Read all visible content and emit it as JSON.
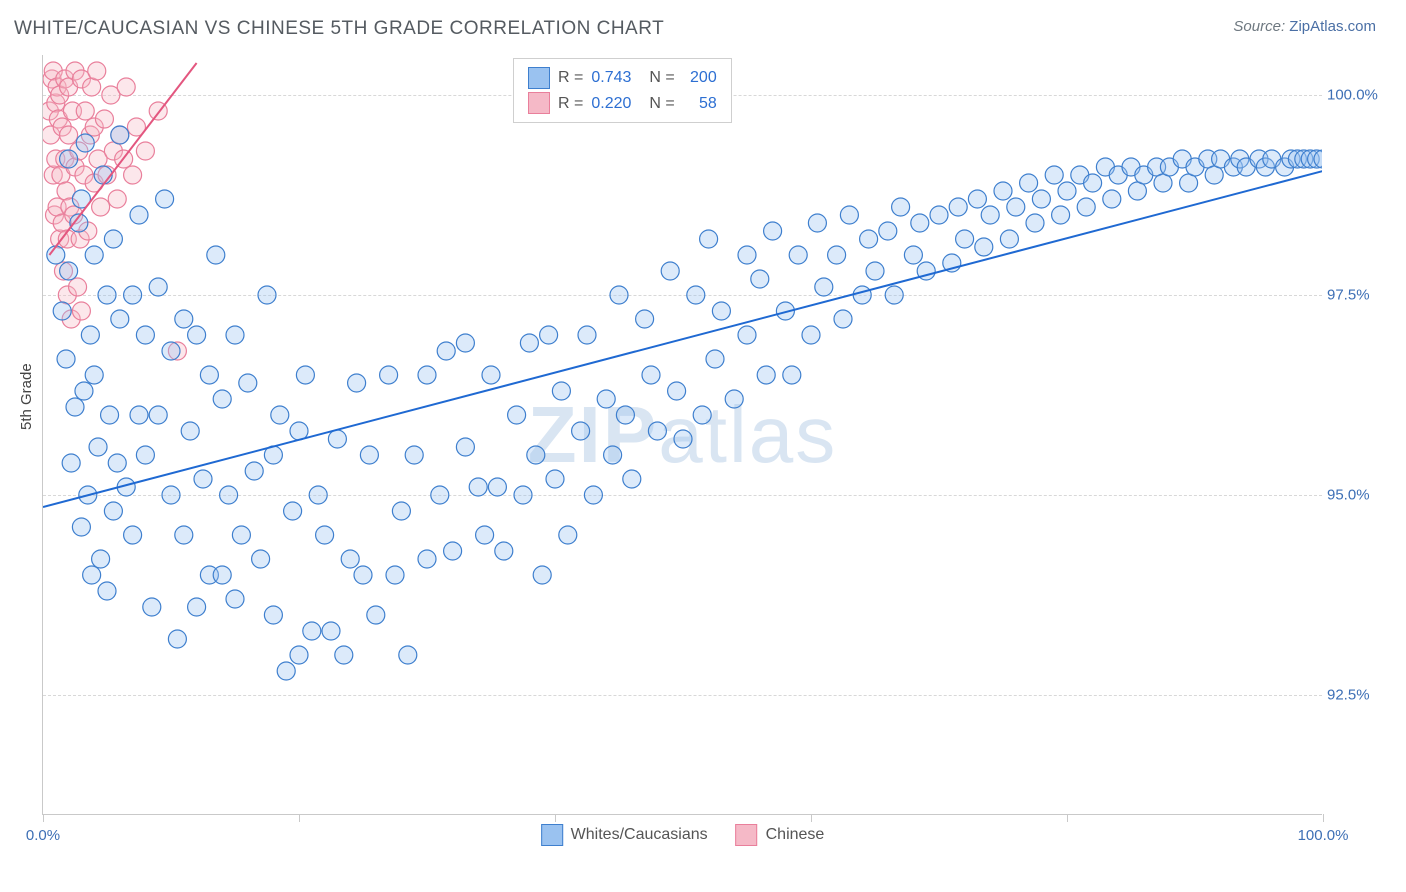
{
  "title": "WHITE/CAUCASIAN VS CHINESE 5TH GRADE CORRELATION CHART",
  "source_prefix": "Source: ",
  "source_name": "ZipAtlas.com",
  "y_axis_title": "5th Grade",
  "watermark_bold": "ZIP",
  "watermark_rest": "atlas",
  "chart": {
    "type": "scatter",
    "background_color": "#ffffff",
    "grid_color": "#d8d8d8",
    "axis_color": "#c9c9c9",
    "tick_label_color": "#3d6fb5",
    "tick_fontsize": 15,
    "xlim": [
      0,
      100
    ],
    "ylim": [
      91.0,
      100.5
    ],
    "x_ticks": [
      0,
      20,
      40,
      60,
      80,
      100
    ],
    "x_tick_labels": {
      "0": "0.0%",
      "100": "100.0%"
    },
    "y_ticks": [
      92.5,
      95.0,
      97.5,
      100.0
    ],
    "y_tick_labels": [
      "92.5%",
      "95.0%",
      "97.5%",
      "100.0%"
    ],
    "marker_radius": 9,
    "marker_stroke_width": 1.2,
    "marker_fill_opacity": 0.35,
    "line_width": 2,
    "series": [
      {
        "name": "Whites/Caucasians",
        "fill": "#9ac2f0",
        "stroke": "#3e7fce",
        "line_color": "#1f69d2",
        "R": "0.743",
        "N": "200",
        "trend": {
          "x1": 0,
          "y1": 94.85,
          "x2": 100,
          "y2": 99.05
        },
        "points": [
          [
            1,
            98.0
          ],
          [
            1.5,
            97.3
          ],
          [
            1.8,
            96.7
          ],
          [
            2,
            99.2
          ],
          [
            2,
            97.8
          ],
          [
            2.2,
            95.4
          ],
          [
            2.5,
            96.1
          ],
          [
            2.8,
            98.4
          ],
          [
            3,
            94.6
          ],
          [
            3,
            98.7
          ],
          [
            3.2,
            96.3
          ],
          [
            3.3,
            99.4
          ],
          [
            3.5,
            95.0
          ],
          [
            3.7,
            97.0
          ],
          [
            3.8,
            94.0
          ],
          [
            4,
            98.0
          ],
          [
            4,
            96.5
          ],
          [
            4.3,
            95.6
          ],
          [
            4.5,
            94.2
          ],
          [
            4.7,
            99.0
          ],
          [
            5,
            97.5
          ],
          [
            5,
            93.8
          ],
          [
            5.2,
            96.0
          ],
          [
            5.5,
            94.8
          ],
          [
            5.5,
            98.2
          ],
          [
            5.8,
            95.4
          ],
          [
            6,
            97.2
          ],
          [
            6,
            99.5
          ],
          [
            6.5,
            95.1
          ],
          [
            7,
            97.5
          ],
          [
            7,
            94.5
          ],
          [
            7.5,
            98.5
          ],
          [
            7.5,
            96.0
          ],
          [
            8,
            97.0
          ],
          [
            8,
            95.5
          ],
          [
            8.5,
            93.6
          ],
          [
            9,
            96.0
          ],
          [
            9,
            97.6
          ],
          [
            9.5,
            98.7
          ],
          [
            10,
            96.8
          ],
          [
            10,
            95.0
          ],
          [
            10.5,
            93.2
          ],
          [
            11,
            97.2
          ],
          [
            11,
            94.5
          ],
          [
            11.5,
            95.8
          ],
          [
            12,
            93.6
          ],
          [
            12,
            97.0
          ],
          [
            12.5,
            95.2
          ],
          [
            13,
            96.5
          ],
          [
            13,
            94.0
          ],
          [
            13.5,
            98.0
          ],
          [
            14,
            94.0
          ],
          [
            14,
            96.2
          ],
          [
            14.5,
            95.0
          ],
          [
            15,
            93.7
          ],
          [
            15,
            97.0
          ],
          [
            15.5,
            94.5
          ],
          [
            16,
            96.4
          ],
          [
            16.5,
            95.3
          ],
          [
            17,
            94.2
          ],
          [
            17.5,
            97.5
          ],
          [
            18,
            95.5
          ],
          [
            18,
            93.5
          ],
          [
            18.5,
            96.0
          ],
          [
            19,
            92.8
          ],
          [
            19.5,
            94.8
          ],
          [
            20,
            95.8
          ],
          [
            20,
            93.0
          ],
          [
            20.5,
            96.5
          ],
          [
            21,
            93.3
          ],
          [
            21.5,
            95.0
          ],
          [
            22,
            94.5
          ],
          [
            22.5,
            93.3
          ],
          [
            23,
            95.7
          ],
          [
            23.5,
            93.0
          ],
          [
            24,
            94.2
          ],
          [
            24.5,
            96.4
          ],
          [
            25,
            94.0
          ],
          [
            25.5,
            95.5
          ],
          [
            26,
            93.5
          ],
          [
            27,
            96.5
          ],
          [
            27.5,
            94.0
          ],
          [
            28,
            94.8
          ],
          [
            28.5,
            93.0
          ],
          [
            29,
            95.5
          ],
          [
            30,
            96.5
          ],
          [
            30,
            94.2
          ],
          [
            31,
            95.0
          ],
          [
            31.5,
            96.8
          ],
          [
            32,
            94.3
          ],
          [
            33,
            95.6
          ],
          [
            33,
            96.9
          ],
          [
            34,
            95.1
          ],
          [
            34.5,
            94.5
          ],
          [
            35,
            96.5
          ],
          [
            35.5,
            95.1
          ],
          [
            36,
            94.3
          ],
          [
            37,
            96.0
          ],
          [
            37.5,
            95.0
          ],
          [
            38,
            96.9
          ],
          [
            38.5,
            95.5
          ],
          [
            39,
            94.0
          ],
          [
            39.5,
            97.0
          ],
          [
            40,
            95.2
          ],
          [
            40.5,
            96.3
          ],
          [
            41,
            94.5
          ],
          [
            42,
            95.8
          ],
          [
            42.5,
            97.0
          ],
          [
            43,
            95.0
          ],
          [
            44,
            96.2
          ],
          [
            44.5,
            95.5
          ],
          [
            45,
            97.5
          ],
          [
            45.5,
            96.0
          ],
          [
            46,
            95.2
          ],
          [
            47,
            97.2
          ],
          [
            47.5,
            96.5
          ],
          [
            48,
            95.8
          ],
          [
            49,
            97.8
          ],
          [
            49.5,
            96.3
          ],
          [
            50,
            95.7
          ],
          [
            51,
            97.5
          ],
          [
            51.5,
            96.0
          ],
          [
            52,
            98.2
          ],
          [
            52.5,
            96.7
          ],
          [
            53,
            97.3
          ],
          [
            54,
            96.2
          ],
          [
            55,
            98.0
          ],
          [
            55,
            97.0
          ],
          [
            56,
            97.7
          ],
          [
            56.5,
            96.5
          ],
          [
            57,
            98.3
          ],
          [
            58,
            97.3
          ],
          [
            58.5,
            96.5
          ],
          [
            59,
            98.0
          ],
          [
            60,
            97.0
          ],
          [
            60.5,
            98.4
          ],
          [
            61,
            97.6
          ],
          [
            62,
            98.0
          ],
          [
            62.5,
            97.2
          ],
          [
            63,
            98.5
          ],
          [
            64,
            97.5
          ],
          [
            64.5,
            98.2
          ],
          [
            65,
            97.8
          ],
          [
            66,
            98.3
          ],
          [
            66.5,
            97.5
          ],
          [
            67,
            98.6
          ],
          [
            68,
            98.0
          ],
          [
            68.5,
            98.4
          ],
          [
            69,
            97.8
          ],
          [
            70,
            98.5
          ],
          [
            71,
            97.9
          ],
          [
            71.5,
            98.6
          ],
          [
            72,
            98.2
          ],
          [
            73,
            98.7
          ],
          [
            73.5,
            98.1
          ],
          [
            74,
            98.5
          ],
          [
            75,
            98.8
          ],
          [
            75.5,
            98.2
          ],
          [
            76,
            98.6
          ],
          [
            77,
            98.9
          ],
          [
            77.5,
            98.4
          ],
          [
            78,
            98.7
          ],
          [
            79,
            99.0
          ],
          [
            79.5,
            98.5
          ],
          [
            80,
            98.8
          ],
          [
            81,
            99.0
          ],
          [
            81.5,
            98.6
          ],
          [
            82,
            98.9
          ],
          [
            83,
            99.1
          ],
          [
            83.5,
            98.7
          ],
          [
            84,
            99.0
          ],
          [
            85,
            99.1
          ],
          [
            85.5,
            98.8
          ],
          [
            86,
            99.0
          ],
          [
            87,
            99.1
          ],
          [
            87.5,
            98.9
          ],
          [
            88,
            99.1
          ],
          [
            89,
            99.2
          ],
          [
            89.5,
            98.9
          ],
          [
            90,
            99.1
          ],
          [
            91,
            99.2
          ],
          [
            91.5,
            99.0
          ],
          [
            92,
            99.2
          ],
          [
            93,
            99.1
          ],
          [
            93.5,
            99.2
          ],
          [
            94,
            99.1
          ],
          [
            95,
            99.2
          ],
          [
            95.5,
            99.1
          ],
          [
            96,
            99.2
          ],
          [
            97,
            99.1
          ],
          [
            97.5,
            99.2
          ],
          [
            98,
            99.2
          ],
          [
            98.5,
            99.2
          ],
          [
            99,
            99.2
          ],
          [
            99.5,
            99.2
          ],
          [
            100,
            99.2
          ]
        ]
      },
      {
        "name": "Chinese",
        "fill": "#f5b9c7",
        "stroke": "#e97f9b",
        "line_color": "#e3567f",
        "R": "0.220",
        "N": "58",
        "trend": {
          "x1": 0.5,
          "y1": 98.0,
          "x2": 12,
          "y2": 100.4
        },
        "points": [
          [
            0.5,
            99.8
          ],
          [
            0.6,
            99.5
          ],
          [
            0.7,
            100.2
          ],
          [
            0.8,
            99.0
          ],
          [
            0.8,
            100.3
          ],
          [
            0.9,
            98.5
          ],
          [
            1.0,
            99.9
          ],
          [
            1.0,
            99.2
          ],
          [
            1.1,
            100.1
          ],
          [
            1.1,
            98.6
          ],
          [
            1.2,
            99.7
          ],
          [
            1.3,
            98.2
          ],
          [
            1.3,
            100.0
          ],
          [
            1.4,
            99.0
          ],
          [
            1.5,
            98.4
          ],
          [
            1.5,
            99.6
          ],
          [
            1.6,
            97.8
          ],
          [
            1.7,
            99.2
          ],
          [
            1.7,
            100.2
          ],
          [
            1.8,
            98.8
          ],
          [
            1.9,
            98.2
          ],
          [
            1.9,
            97.5
          ],
          [
            2.0,
            99.5
          ],
          [
            2.0,
            100.1
          ],
          [
            2.1,
            98.6
          ],
          [
            2.2,
            97.2
          ],
          [
            2.3,
            99.8
          ],
          [
            2.4,
            98.5
          ],
          [
            2.5,
            100.3
          ],
          [
            2.5,
            99.1
          ],
          [
            2.7,
            97.6
          ],
          [
            2.8,
            99.3
          ],
          [
            2.9,
            98.2
          ],
          [
            3.0,
            100.2
          ],
          [
            3.0,
            97.3
          ],
          [
            3.2,
            99.0
          ],
          [
            3.3,
            99.8
          ],
          [
            3.5,
            98.3
          ],
          [
            3.7,
            99.5
          ],
          [
            3.8,
            100.1
          ],
          [
            4.0,
            98.9
          ],
          [
            4.0,
            99.6
          ],
          [
            4.2,
            100.3
          ],
          [
            4.3,
            99.2
          ],
          [
            4.5,
            98.6
          ],
          [
            4.8,
            99.7
          ],
          [
            5.0,
            99.0
          ],
          [
            5.3,
            100.0
          ],
          [
            5.5,
            99.3
          ],
          [
            5.8,
            98.7
          ],
          [
            6.0,
            99.5
          ],
          [
            6.3,
            99.2
          ],
          [
            6.5,
            100.1
          ],
          [
            7.0,
            99.0
          ],
          [
            7.3,
            99.6
          ],
          [
            8.0,
            99.3
          ],
          [
            9.0,
            99.8
          ],
          [
            10.5,
            96.8
          ]
        ]
      }
    ]
  },
  "legend_bottom": [
    {
      "label": "Whites/Caucasians",
      "fill": "#9ac2f0",
      "stroke": "#3e7fce"
    },
    {
      "label": "Chinese",
      "fill": "#f5b9c7",
      "stroke": "#e97f9b"
    }
  ]
}
